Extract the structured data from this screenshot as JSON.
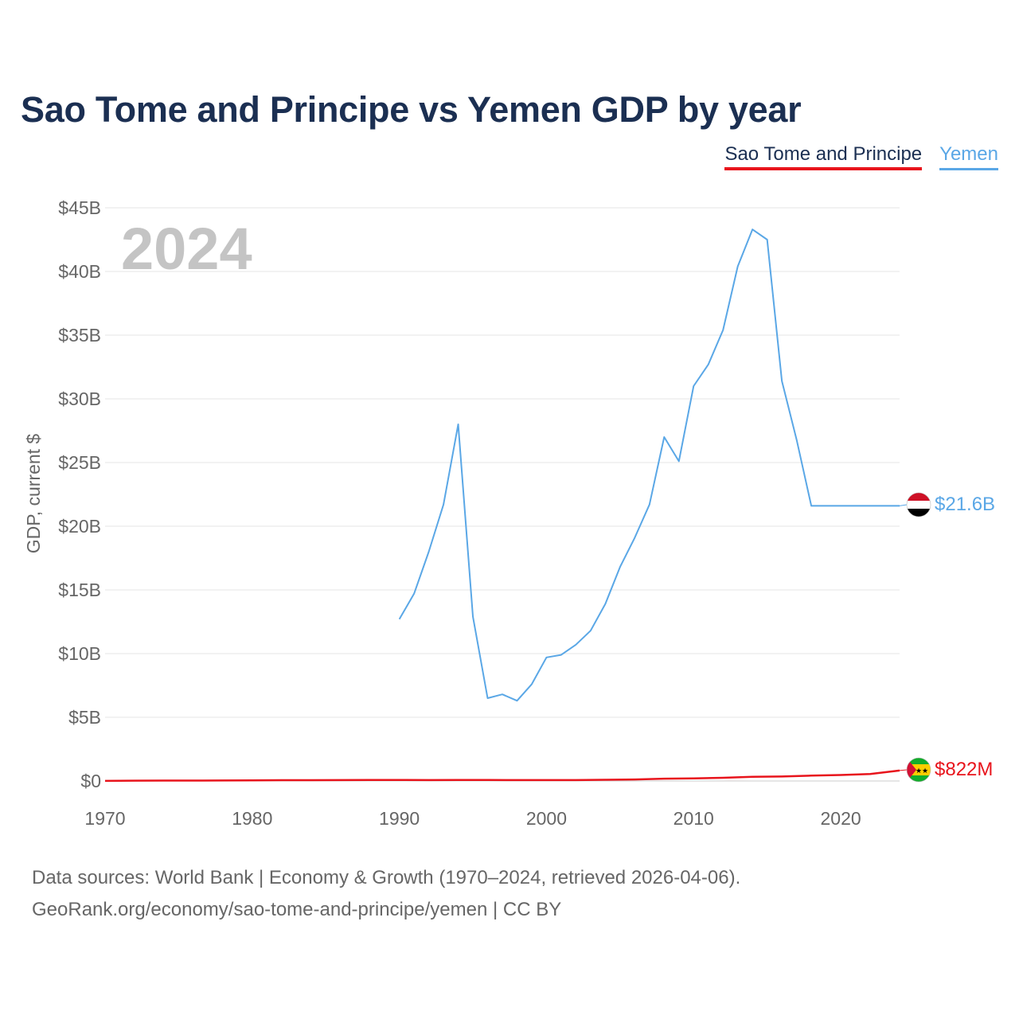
{
  "title": "Sao Tome and Principe vs Yemen GDP by year",
  "legend": {
    "stp": "Sao Tome and Principe",
    "yemen": "Yemen"
  },
  "year_label": "2024",
  "end_labels": {
    "yemen": "$21.6B",
    "stp": "$822M"
  },
  "footer": {
    "line1": "Data sources: World Bank | Economy & Growth (1970–2024, retrieved 2026-04-06).",
    "line2": "GeoRank.org/economy/sao-tome-and-principe/yemen | CC BY"
  },
  "colors": {
    "stp": "#e8141c",
    "yemen": "#5aa7e6",
    "title": "#1b2f52",
    "grid": "#e6e6e6",
    "year": "#c4c4c4"
  },
  "icons": {
    "stp_flag": "sao-tome-flag-icon",
    "yemen_flag": "yemen-flag-icon"
  },
  "chart_data": {
    "type": "line",
    "ylabel": "GDP, current $",
    "xlabel": "",
    "xlim": [
      1970,
      2024
    ],
    "ylim": [
      0,
      45
    ],
    "y_unit": "billions USD",
    "x_ticks": [
      1970,
      1980,
      1990,
      2000,
      2010,
      2020
    ],
    "y_ticks": [
      0,
      5,
      10,
      15,
      20,
      25,
      30,
      35,
      40,
      45
    ],
    "y_tick_labels": [
      "$0",
      "$5B",
      "$10B",
      "$15B",
      "$20B",
      "$25B",
      "$30B",
      "$35B",
      "$40B",
      "$45B"
    ],
    "series": [
      {
        "name": "Yemen",
        "x": [
          1990,
          1991,
          1992,
          1993,
          1994,
          1995,
          1996,
          1997,
          1998,
          1999,
          2000,
          2001,
          2002,
          2003,
          2004,
          2005,
          2006,
          2007,
          2008,
          2009,
          2010,
          2011,
          2012,
          2013,
          2014,
          2015,
          2016,
          2017,
          2018,
          2019,
          2020,
          2021,
          2022,
          2023,
          2024
        ],
        "values": [
          12.7,
          14.7,
          18.0,
          21.7,
          28.0,
          12.9,
          6.5,
          6.8,
          6.3,
          7.6,
          9.7,
          9.9,
          10.7,
          11.8,
          13.9,
          16.8,
          19.1,
          21.7,
          27.0,
          25.1,
          31.0,
          32.7,
          35.4,
          40.4,
          43.3,
          42.5,
          31.4,
          26.8,
          21.6,
          21.6,
          21.6,
          21.6,
          21.6,
          21.6,
          21.6
        ]
      },
      {
        "name": "Sao Tome and Principe",
        "x": [
          1970,
          1972,
          1974,
          1976,
          1978,
          1980,
          1982,
          1984,
          1986,
          1988,
          1990,
          1992,
          1994,
          1996,
          1998,
          2000,
          2002,
          2004,
          2006,
          2008,
          2010,
          2012,
          2014,
          2016,
          2018,
          2020,
          2022,
          2024
        ],
        "values": [
          0.01,
          0.02,
          0.03,
          0.03,
          0.04,
          0.05,
          0.06,
          0.06,
          0.07,
          0.08,
          0.08,
          0.07,
          0.08,
          0.08,
          0.07,
          0.07,
          0.07,
          0.09,
          0.12,
          0.18,
          0.2,
          0.25,
          0.33,
          0.35,
          0.42,
          0.47,
          0.55,
          0.822
        ]
      }
    ]
  }
}
